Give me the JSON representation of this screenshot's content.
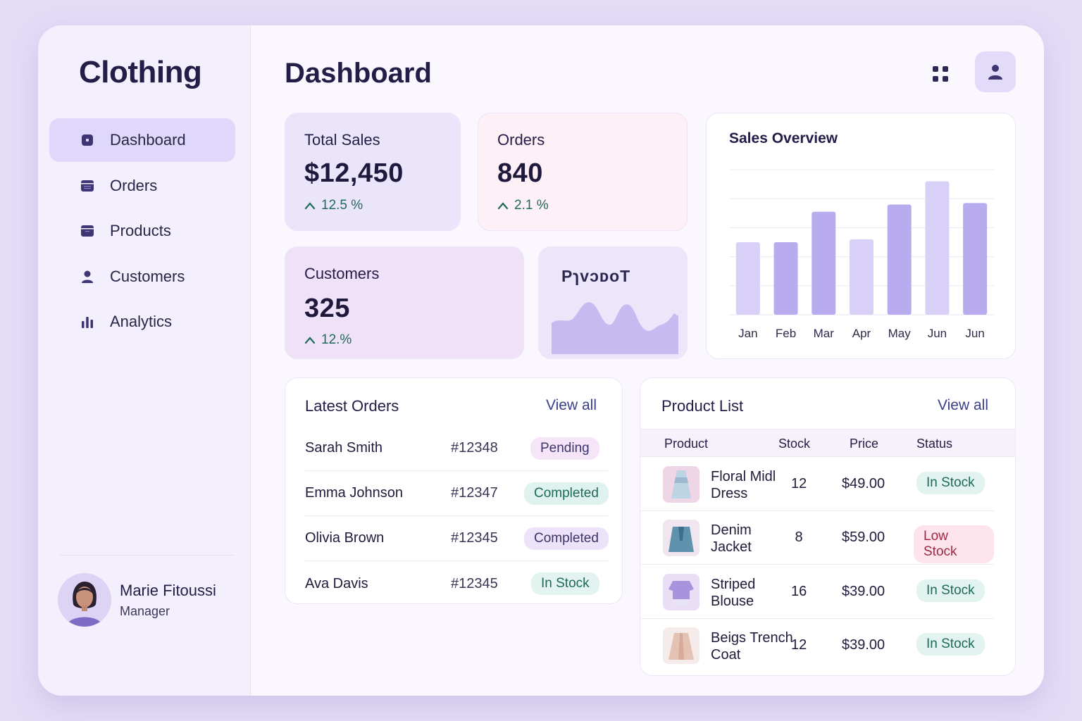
{
  "sidebar": {
    "brand": "Clothing",
    "nav": [
      {
        "label": "Dashboard",
        "icon": "dashboard-icon",
        "active": true
      },
      {
        "label": "Orders",
        "icon": "orders-icon"
      },
      {
        "label": "Products",
        "icon": "products-icon"
      },
      {
        "label": "Customers",
        "icon": "customers-icon"
      },
      {
        "label": "Analytics",
        "icon": "analytics-icon"
      }
    ],
    "profile": {
      "name": "Marie Fitoussi",
      "role": "Manager"
    }
  },
  "header": {
    "title": "Dashboard"
  },
  "stats": {
    "sales": {
      "label": "Total Sales",
      "value": "$12,450",
      "change": "12.5 %"
    },
    "orders": {
      "label": "Orders",
      "value": "840",
      "change": "2.1 %"
    },
    "customers": {
      "label": "Customers",
      "value": "325",
      "change": "12.%"
    },
    "mini": {
      "label": "PɿvɔᴅoT"
    }
  },
  "chart_data": {
    "type": "bar",
    "title": "Sales Overview",
    "categories": [
      "Jan",
      "Feb",
      "Mar",
      "Apr",
      "May",
      "Jun",
      "Jun"
    ],
    "values": [
      25,
      25,
      35.5,
      26,
      38,
      46,
      38.5
    ],
    "ylim": [
      0,
      50
    ],
    "grid": true,
    "colors": [
      "#d9d0f7",
      "#b8acef",
      "#b8acef",
      "#d9d0f7",
      "#b8acef",
      "#d9d0f7",
      "#b8acef"
    ]
  },
  "latest_orders": {
    "title": "Latest Orders",
    "view_all": "View all",
    "rows": [
      {
        "name": "Sarah Smith",
        "id": "#12348",
        "status": "Pending"
      },
      {
        "name": "Emma Johnson",
        "id": "#12347",
        "status": "Completed"
      },
      {
        "name": "Olivia Brown",
        "id": "#12345",
        "status": "Completed"
      },
      {
        "name": "Ava Davis",
        "id": "#12345",
        "status": "In Stock"
      }
    ]
  },
  "products": {
    "title": "Product List",
    "view_all": "View all",
    "columns": [
      "Product",
      "Stock",
      "Price",
      "Status"
    ],
    "rows": [
      {
        "name": "Floral Midl Dress",
        "stock": "12",
        "price": "$49.00",
        "status": "In Stock"
      },
      {
        "name": "Denim Jacket",
        "stock": "8",
        "price": "$59.00",
        "status": "Low Stock"
      },
      {
        "name": "Striped Blouse",
        "stock": "16",
        "price": "$39.00",
        "status": "In Stock"
      },
      {
        "name": "Beigs Trench Coat",
        "stock": "12",
        "price": "$39.00",
        "status": "In Stock"
      }
    ]
  },
  "colors": {
    "accent": "#b8acef",
    "accent_light": "#d9d0f7",
    "positive": "#1f6b5a",
    "warning": "#a02844"
  }
}
